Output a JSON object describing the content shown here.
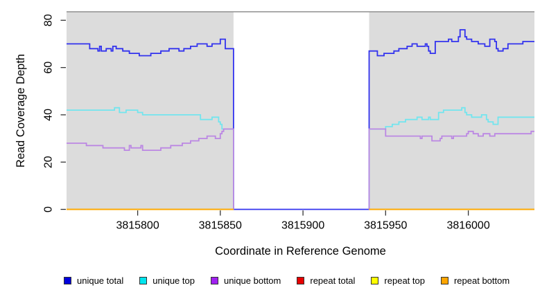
{
  "chart_data": {
    "type": "line",
    "subtype": "step",
    "title": "",
    "xlabel": "Coordinate in Reference Genome",
    "ylabel": "Read Coverage Depth",
    "xlim": [
      3815757,
      3816040
    ],
    "ylim": [
      0,
      80
    ],
    "x_ticks": [
      "3815800",
      "3815850",
      "3815900",
      "3815950",
      "3816000"
    ],
    "x_tick_values": [
      3815800,
      3815850,
      3815900,
      3815950,
      3816000
    ],
    "y_ticks": [
      "0",
      "20",
      "40",
      "60",
      "80"
    ],
    "y_tick_values": [
      0,
      20,
      40,
      60,
      80
    ],
    "grid": false,
    "legend_position": "bottom",
    "shaded_color": "#DCDCDC",
    "background_shaded_regions": [
      [
        3815757,
        3815858
      ],
      [
        3815940,
        3816040
      ]
    ],
    "gap_region": [
      3815858,
      3815940
    ],
    "legend": [
      {
        "label": "unique total",
        "color": "#0000DD"
      },
      {
        "label": "unique top",
        "color": "#00E5EE"
      },
      {
        "label": "unique bottom",
        "color": "#A020F0"
      },
      {
        "label": "repeat total",
        "color": "#E60000"
      },
      {
        "label": "repeat top",
        "color": "#FFFF00"
      },
      {
        "label": "repeat bottom",
        "color": "#FFA500"
      }
    ],
    "series": [
      {
        "name": "unique total",
        "line_color": "#3232EE",
        "segments": [
          [
            [
              3815757,
              70
            ],
            [
              3815770,
              70
            ],
            [
              3815771,
              68
            ],
            [
              3815775,
              68
            ],
            [
              3815776,
              67
            ],
            [
              3815777,
              69
            ],
            [
              3815778,
              67
            ],
            [
              3815780,
              67
            ],
            [
              3815781,
              68
            ],
            [
              3815783,
              68
            ],
            [
              3815784,
              67
            ],
            [
              3815785,
              69
            ],
            [
              3815786,
              69
            ],
            [
              3815787,
              68
            ],
            [
              3815790,
              68
            ],
            [
              3815791,
              67
            ],
            [
              3815794,
              67
            ],
            [
              3815795,
              66
            ],
            [
              3815800,
              66
            ],
            [
              3815801,
              65
            ],
            [
              3815807,
              65
            ],
            [
              3815808,
              66
            ],
            [
              3815813,
              66
            ],
            [
              3815814,
              67
            ],
            [
              3815818,
              67
            ],
            [
              3815819,
              68
            ],
            [
              3815824,
              68
            ],
            [
              3815825,
              67
            ],
            [
              3815827,
              67
            ],
            [
              3815828,
              68
            ],
            [
              3815831,
              68
            ],
            [
              3815832,
              69
            ],
            [
              3815835,
              69
            ],
            [
              3815836,
              70
            ],
            [
              3815841,
              70
            ],
            [
              3815842,
              69
            ],
            [
              3815844,
              69
            ],
            [
              3815845,
              70
            ],
            [
              3815849,
              70
            ],
            [
              3815850,
              72
            ],
            [
              3815852,
              72
            ],
            [
              3815853,
              68
            ],
            [
              3815858,
              68
            ],
            [
              3815858,
              0
            ],
            [
              3815940,
              0
            ],
            [
              3815940,
              67
            ],
            [
              3815944,
              67
            ],
            [
              3815945,
              65
            ],
            [
              3815948,
              65
            ],
            [
              3815949,
              66
            ],
            [
              3815954,
              66
            ],
            [
              3815955,
              67
            ],
            [
              3815957,
              67
            ],
            [
              3815958,
              68
            ],
            [
              3815962,
              68
            ],
            [
              3815963,
              69
            ],
            [
              3815965,
              69
            ],
            [
              3815966,
              70
            ],
            [
              3815968,
              70
            ],
            [
              3815969,
              69
            ],
            [
              3815973,
              69
            ],
            [
              3815974,
              70
            ],
            [
              3815975,
              69
            ],
            [
              3815976,
              67
            ],
            [
              3815977,
              66
            ],
            [
              3815979,
              66
            ],
            [
              3815980,
              71
            ],
            [
              3815987,
              71
            ],
            [
              3815988,
              72
            ],
            [
              3815990,
              71
            ],
            [
              3815993,
              71
            ],
            [
              3815994,
              73
            ],
            [
              3815995,
              76
            ],
            [
              3815997,
              76
            ],
            [
              3815998,
              73
            ],
            [
              3815999,
              72
            ],
            [
              3816001,
              72
            ],
            [
              3816002,
              71
            ],
            [
              3816005,
              71
            ],
            [
              3816006,
              70
            ],
            [
              3816009,
              70
            ],
            [
              3816010,
              69
            ],
            [
              3816012,
              69
            ],
            [
              3816013,
              72
            ],
            [
              3816015,
              72
            ],
            [
              3816016,
              71
            ],
            [
              3816017,
              68
            ],
            [
              3816018,
              67
            ],
            [
              3816020,
              67
            ],
            [
              3816021,
              68
            ],
            [
              3816023,
              68
            ],
            [
              3816024,
              70
            ],
            [
              3816032,
              70
            ],
            [
              3816033,
              71
            ],
            [
              3816040,
              71
            ]
          ]
        ]
      },
      {
        "name": "unique top",
        "line_color": "#72E5EE",
        "segments": [
          [
            [
              3815757,
              42
            ],
            [
              3815785,
              42
            ],
            [
              3815786,
              43
            ],
            [
              3815788,
              43
            ],
            [
              3815789,
              41
            ],
            [
              3815792,
              41
            ],
            [
              3815793,
              42
            ],
            [
              3815799,
              42
            ],
            [
              3815800,
              41
            ],
            [
              3815802,
              41
            ],
            [
              3815803,
              40
            ],
            [
              3815837,
              40
            ],
            [
              3815838,
              38
            ],
            [
              3815844,
              38
            ],
            [
              3815845,
              39
            ],
            [
              3815848,
              39
            ],
            [
              3815849,
              37
            ],
            [
              3815850,
              36
            ],
            [
              3815851,
              34
            ],
            [
              3815858,
              34
            ],
            [
              3815858,
              0
            ]
          ],
          [
            [
              3815940,
              0
            ],
            [
              3815940,
              34
            ],
            [
              3815949,
              34
            ],
            [
              3815950,
              35
            ],
            [
              3815953,
              35
            ],
            [
              3815954,
              36
            ],
            [
              3815957,
              36
            ],
            [
              3815958,
              37
            ],
            [
              3815961,
              37
            ],
            [
              3815962,
              38
            ],
            [
              3815968,
              38
            ],
            [
              3815969,
              39
            ],
            [
              3815971,
              39
            ],
            [
              3815972,
              38
            ],
            [
              3815975,
              38
            ],
            [
              3815976,
              39
            ],
            [
              3815977,
              38
            ],
            [
              3815981,
              38
            ],
            [
              3815982,
              41
            ],
            [
              3815984,
              41
            ],
            [
              3815985,
              42
            ],
            [
              3815995,
              42
            ],
            [
              3815996,
              43
            ],
            [
              3815997,
              43
            ],
            [
              3815998,
              41
            ],
            [
              3815999,
              40
            ],
            [
              3816001,
              40
            ],
            [
              3816002,
              39
            ],
            [
              3816007,
              39
            ],
            [
              3816008,
              40
            ],
            [
              3816010,
              40
            ],
            [
              3816011,
              38
            ],
            [
              3816012,
              37
            ],
            [
              3816014,
              37
            ],
            [
              3816015,
              36
            ],
            [
              3816017,
              36
            ],
            [
              3816018,
              39
            ],
            [
              3816040,
              39
            ]
          ]
        ]
      },
      {
        "name": "unique bottom",
        "line_color": "#BB87E3",
        "segments": [
          [
            [
              3815757,
              28
            ],
            [
              3815768,
              28
            ],
            [
              3815769,
              27
            ],
            [
              3815778,
              27
            ],
            [
              3815779,
              26
            ],
            [
              3815791,
              26
            ],
            [
              3815792,
              25
            ],
            [
              3815794,
              25
            ],
            [
              3815795,
              27
            ],
            [
              3815796,
              26
            ],
            [
              3815801,
              26
            ],
            [
              3815802,
              27
            ],
            [
              3815803,
              25
            ],
            [
              3815813,
              25
            ],
            [
              3815814,
              26
            ],
            [
              3815819,
              26
            ],
            [
              3815820,
              27
            ],
            [
              3815826,
              27
            ],
            [
              3815827,
              28
            ],
            [
              3815831,
              28
            ],
            [
              3815832,
              29
            ],
            [
              3815836,
              29
            ],
            [
              3815837,
              30
            ],
            [
              3815841,
              30
            ],
            [
              3815842,
              31
            ],
            [
              3815846,
              31
            ],
            [
              3815847,
              30
            ],
            [
              3815849,
              30
            ],
            [
              3815850,
              32
            ],
            [
              3815851,
              33
            ],
            [
              3815852,
              34
            ],
            [
              3815858,
              34
            ],
            [
              3815858,
              0
            ]
          ],
          [
            [
              3815940,
              0
            ],
            [
              3815940,
              34
            ],
            [
              3815949,
              34
            ],
            [
              3815950,
              31
            ],
            [
              3815970,
              31
            ],
            [
              3815971,
              30
            ],
            [
              3815972,
              31
            ],
            [
              3815977,
              31
            ],
            [
              3815978,
              29
            ],
            [
              3815982,
              29
            ],
            [
              3815983,
              30
            ],
            [
              3815984,
              31
            ],
            [
              3815989,
              31
            ],
            [
              3815990,
              30
            ],
            [
              3815991,
              31
            ],
            [
              3815998,
              31
            ],
            [
              3815999,
              32
            ],
            [
              3816000,
              33
            ],
            [
              3816002,
              33
            ],
            [
              3816003,
              32
            ],
            [
              3816005,
              32
            ],
            [
              3816006,
              31
            ],
            [
              3816008,
              31
            ],
            [
              3816009,
              32
            ],
            [
              3816012,
              32
            ],
            [
              3816013,
              31
            ],
            [
              3816015,
              31
            ],
            [
              3816016,
              32
            ],
            [
              3816037,
              32
            ],
            [
              3816038,
              33
            ],
            [
              3816040,
              33
            ]
          ]
        ]
      },
      {
        "name": "repeat total",
        "line_color": "#E60000",
        "segments": [
          [
            [
              3815757,
              0
            ],
            [
              3815858,
              0
            ]
          ],
          [
            [
              3815940,
              0
            ],
            [
              3816040,
              0
            ]
          ]
        ]
      },
      {
        "name": "repeat top",
        "line_color": "#FFFF00",
        "segments": [
          [
            [
              3815757,
              0
            ],
            [
              3815858,
              0
            ]
          ],
          [
            [
              3815940,
              0
            ],
            [
              3816040,
              0
            ]
          ]
        ]
      },
      {
        "name": "repeat bottom",
        "line_color": "#FFA500",
        "segments": [
          [
            [
              3815757,
              0
            ],
            [
              3815858,
              0
            ]
          ],
          [
            [
              3815940,
              0
            ],
            [
              3816040,
              0
            ]
          ]
        ]
      }
    ]
  }
}
